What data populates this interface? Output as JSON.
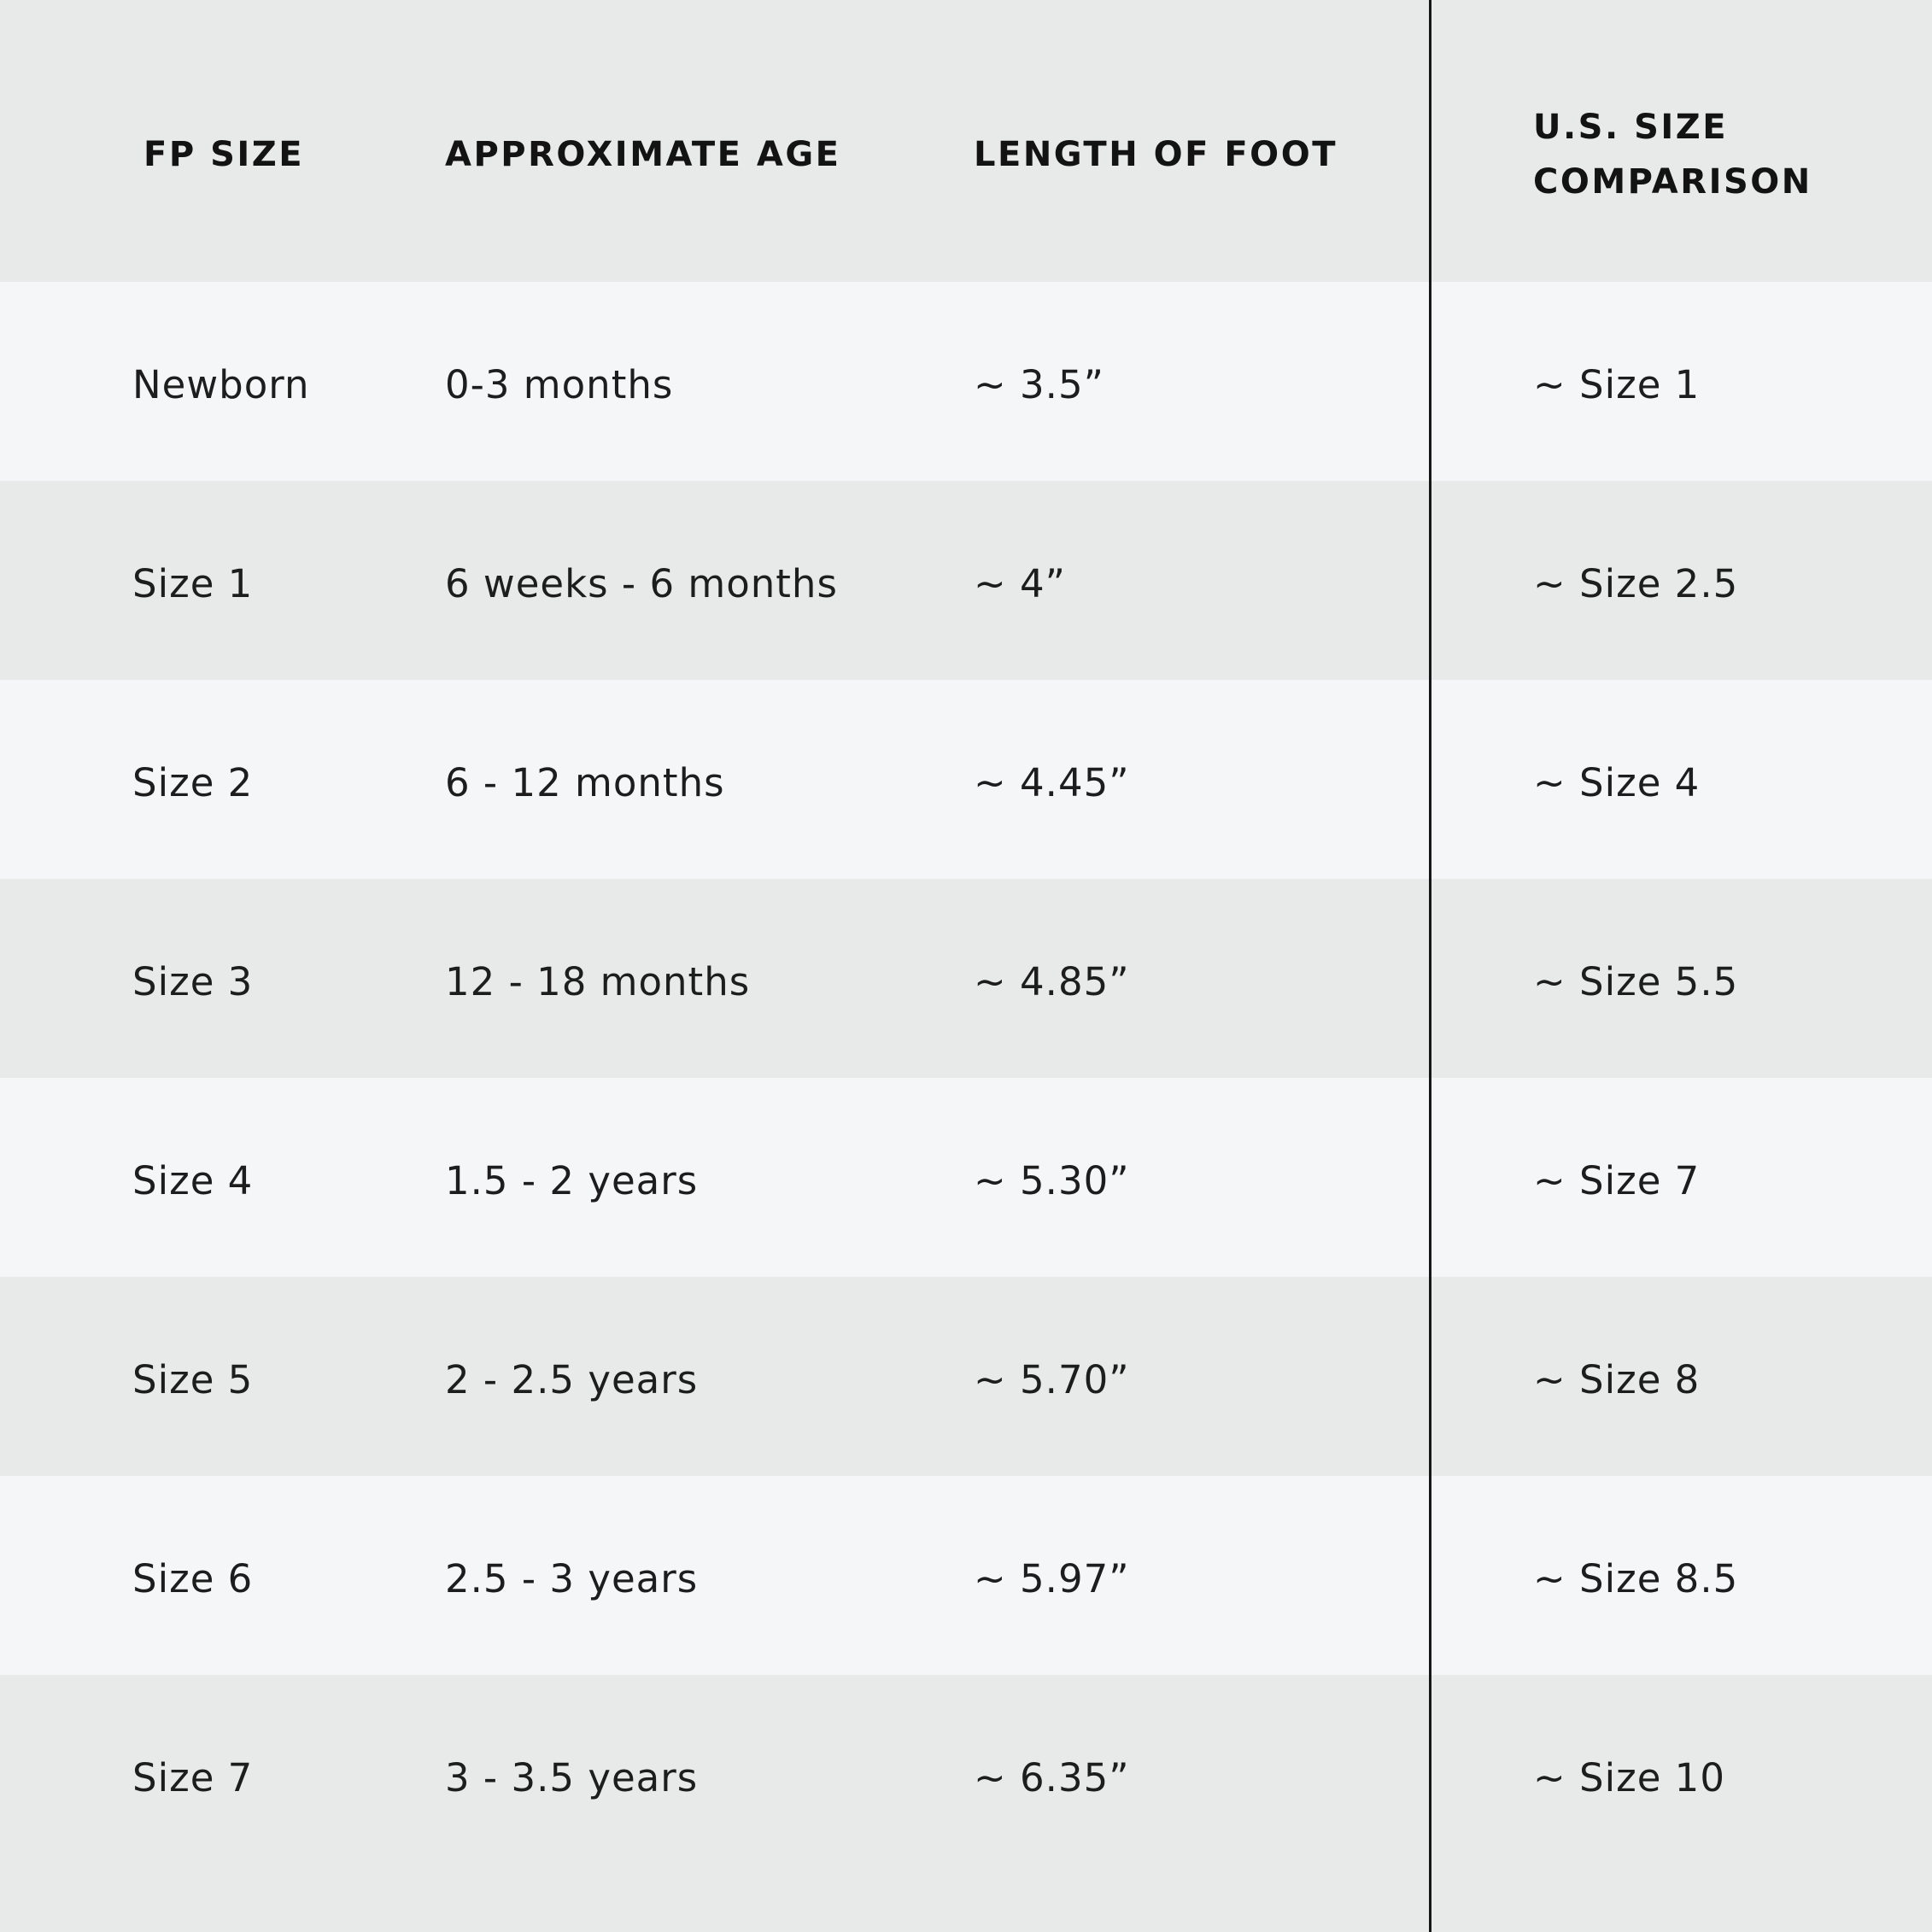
{
  "chart_data": {
    "type": "table",
    "columns": [
      "FP SIZE",
      "APPROXIMATE AGE",
      "LENGTH OF FOOT",
      "U.S. SIZE COMPARISON"
    ],
    "rows": [
      {
        "fp_size": "Newborn",
        "age": "0-3 months",
        "foot_length": "~ 3.5”",
        "us_size": "~ Size 1"
      },
      {
        "fp_size": "Size 1",
        "age": "6 weeks - 6 months",
        "foot_length": "~ 4”",
        "us_size": "~ Size 2.5"
      },
      {
        "fp_size": "Size 2",
        "age": "6 - 12 months",
        "foot_length": "~ 4.45”",
        "us_size": "~ Size 4"
      },
      {
        "fp_size": "Size 3",
        "age": "12 - 18 months",
        "foot_length": "~ 4.85”",
        "us_size": "~ Size 5.5"
      },
      {
        "fp_size": "Size 4",
        "age": "1.5 - 2 years",
        "foot_length": "~ 5.30”",
        "us_size": "~ Size 7"
      },
      {
        "fp_size": "Size 5",
        "age": "2 - 2.5 years",
        "foot_length": "~ 5.70”",
        "us_size": "~ Size 8"
      },
      {
        "fp_size": "Size 6",
        "age": "2.5 - 3 years",
        "foot_length": "~ 5.97”",
        "us_size": "~ Size 8.5"
      },
      {
        "fp_size": "Size 7",
        "age": "3 - 3.5 years",
        "foot_length": "~ 6.35”",
        "us_size": "~ Size 10"
      }
    ],
    "layout_hints": {
      "legend": "none",
      "grid": "zebra-striped rows, single vertical rule before last column"
    },
    "colors": {
      "header_bg": "#e8e9e9",
      "row_light_bg": "#f5f6f8",
      "row_dark_bg": "#e8e9e9",
      "divider": "#161616",
      "text": "#1d1d1d",
      "header_text": "#131313"
    }
  }
}
